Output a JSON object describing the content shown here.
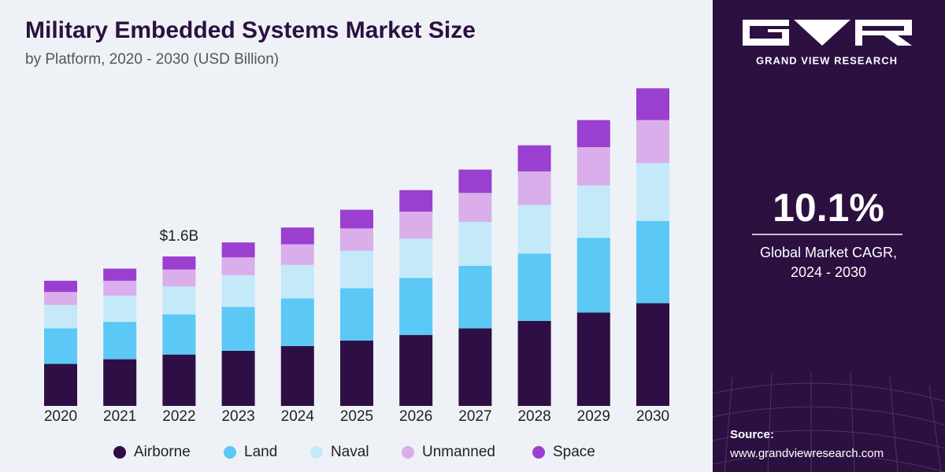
{
  "chart_data": {
    "type": "stacked-bar",
    "title": "Military Embedded Systems Market Size",
    "subtitle": "by Platform, 2020 - 2030 (USD Billion)",
    "categories": [
      "2020",
      "2021",
      "2022",
      "2023",
      "2024",
      "2025",
      "2026",
      "2027",
      "2028",
      "2029",
      "2030"
    ],
    "series": [
      {
        "name": "Airborne",
        "color": "#2e0f45",
        "values": [
          0.45,
          0.5,
          0.55,
          0.59,
          0.64,
          0.7,
          0.76,
          0.83,
          0.91,
          1.0,
          1.1
        ]
      },
      {
        "name": "Land",
        "color": "#5bc8f5",
        "values": [
          0.38,
          0.4,
          0.43,
          0.47,
          0.51,
          0.56,
          0.61,
          0.67,
          0.72,
          0.8,
          0.88
        ]
      },
      {
        "name": "Naval",
        "color": "#c4e9f9",
        "values": [
          0.25,
          0.28,
          0.3,
          0.34,
          0.36,
          0.4,
          0.42,
          0.47,
          0.52,
          0.56,
          0.62
        ]
      },
      {
        "name": "Unmanned",
        "color": "#daaeea",
        "values": [
          0.14,
          0.16,
          0.18,
          0.19,
          0.22,
          0.24,
          0.29,
          0.31,
          0.36,
          0.41,
          0.46
        ]
      },
      {
        "name": "Space",
        "color": "#9b3fd0",
        "values": [
          0.12,
          0.13,
          0.14,
          0.16,
          0.18,
          0.2,
          0.23,
          0.25,
          0.28,
          0.29,
          0.34
        ]
      }
    ],
    "annotation": {
      "category": "2022",
      "value": 1.6,
      "label": "$1.6B"
    }
  },
  "sidebar": {
    "brand": "GRAND VIEW RESEARCH",
    "cagr": "10.1%",
    "cagr_label": [
      "Global Market CAGR,",
      "2024 - 2030"
    ],
    "source_title": "Source:",
    "source_url": "www.grandviewresearch.com"
  }
}
